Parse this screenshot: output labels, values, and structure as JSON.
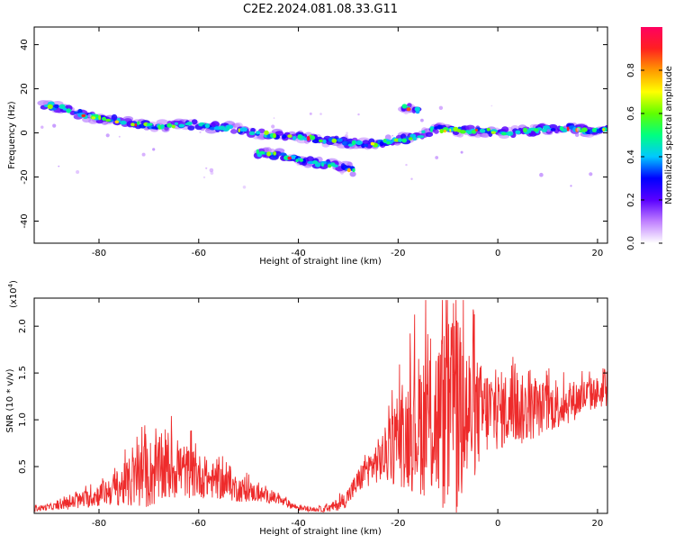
{
  "title": "C2E2.2024.081.08.33.G11",
  "colors": {
    "axis": "#000000",
    "snr_line": "#ee2b2b",
    "background": "#ffffff"
  },
  "chart_data": [
    {
      "type": "heatmap",
      "name": "spectrogram",
      "xlabel": "Height of straight line (km)",
      "ylabel": "Frequency (Hz)",
      "xlim": [
        -93,
        22
      ],
      "ylim": [
        -50,
        48
      ],
      "xticks": [
        -80,
        -60,
        -40,
        -20,
        0,
        20
      ],
      "yticks": [
        -40,
        -20,
        0,
        20,
        40
      ],
      "traces": [
        {
          "name": "main-branch",
          "points": [
            [
              -91,
              13
            ],
            [
              -87,
              11
            ],
            [
              -83,
              8
            ],
            [
              -78,
              6
            ],
            [
              -73,
              4
            ],
            [
              -68,
              3
            ],
            [
              -63,
              4
            ],
            [
              -58,
              3
            ],
            [
              -53,
              2
            ],
            [
              -48,
              0
            ],
            [
              -44,
              -1
            ],
            [
              -40,
              -2
            ],
            [
              -36,
              -3
            ],
            [
              -32,
              -4
            ],
            [
              -28,
              -5
            ],
            [
              -24,
              -5
            ],
            [
              -20,
              -3
            ],
            [
              -16,
              -2
            ],
            [
              -13,
              2
            ],
            [
              -10,
              1
            ],
            [
              -6,
              1
            ],
            [
              -2,
              1
            ],
            [
              2,
              0
            ],
            [
              6,
              1
            ],
            [
              10,
              2
            ],
            [
              14,
              2
            ],
            [
              18,
              1
            ],
            [
              22,
              1
            ]
          ]
        },
        {
          "name": "lower-branch",
          "points": [
            [
              -48,
              -9
            ],
            [
              -44,
              -10
            ],
            [
              -40,
              -12
            ],
            [
              -36,
              -14
            ],
            [
              -32,
              -15
            ],
            [
              -29,
              -17
            ]
          ]
        },
        {
          "name": "upper-blob",
          "points": [
            [
              -19,
              12
            ],
            [
              -16,
              10
            ]
          ]
        }
      ],
      "colorbar": {
        "label": "Normalized spectral amplitude",
        "ticks": [
          "0.0",
          "0.2",
          "0.4",
          "0.6",
          "0.8"
        ],
        "range": [
          0,
          1
        ],
        "stops": [
          "#ffffff",
          "#c080ff",
          "#5a00ff",
          "#0000ff",
          "#00c8ff",
          "#00ff80",
          "#60ff00",
          "#ffff00",
          "#ff9900",
          "#ff2020",
          "#ff0060"
        ]
      }
    },
    {
      "type": "line",
      "name": "snr",
      "xlabel": "Height of straight line (km)",
      "ylabel": "SNR (10 * v/v)",
      "scale_label": "(x10",
      "scale_exp": "4",
      "scale_close": ")",
      "xlim": [
        -93,
        22
      ],
      "ylim": [
        0,
        2.3
      ],
      "xticks": [
        -80,
        -60,
        -40,
        -20,
        0,
        20
      ],
      "yticks": [
        "0.5",
        "1.0",
        "1.5",
        "2.0"
      ],
      "envelope": {
        "x": [
          -93,
          -88,
          -85,
          -82,
          -79,
          -76,
          -73,
          -70,
          -67,
          -64,
          -61,
          -58,
          -55,
          -52,
          -49,
          -46,
          -43,
          -40,
          -37,
          -34,
          -31,
          -29,
          -27,
          -25,
          -23,
          -21,
          -19,
          -17,
          -15,
          -13,
          -11,
          -9,
          -7,
          -5,
          -3,
          -1,
          1,
          3,
          5,
          7,
          9,
          11,
          13,
          15,
          17,
          19,
          22
        ],
        "mean": [
          0.05,
          0.08,
          0.12,
          0.16,
          0.22,
          0.28,
          0.34,
          0.42,
          0.46,
          0.48,
          0.42,
          0.36,
          0.32,
          0.26,
          0.22,
          0.18,
          0.12,
          0.06,
          0.04,
          0.05,
          0.12,
          0.26,
          0.42,
          0.52,
          0.6,
          0.7,
          0.82,
          0.92,
          0.98,
          1.0,
          1.0,
          1.0,
          1.02,
          1.04,
          1.08,
          1.1,
          1.1,
          1.12,
          1.1,
          1.1,
          1.12,
          1.14,
          1.16,
          1.2,
          1.24,
          1.28,
          1.3
        ],
        "amp": [
          0.03,
          0.04,
          0.08,
          0.1,
          0.14,
          0.2,
          0.3,
          0.38,
          0.36,
          0.32,
          0.26,
          0.2,
          0.18,
          0.14,
          0.1,
          0.07,
          0.05,
          0.03,
          0.02,
          0.04,
          0.08,
          0.12,
          0.16,
          0.2,
          0.28,
          0.4,
          0.55,
          0.7,
          0.8,
          0.9,
          1.0,
          1.1,
          1.05,
          0.7,
          0.5,
          0.45,
          0.42,
          0.4,
          0.38,
          0.32,
          0.28,
          0.26,
          0.24,
          0.22,
          0.2,
          0.18,
          0.16
        ]
      }
    }
  ]
}
